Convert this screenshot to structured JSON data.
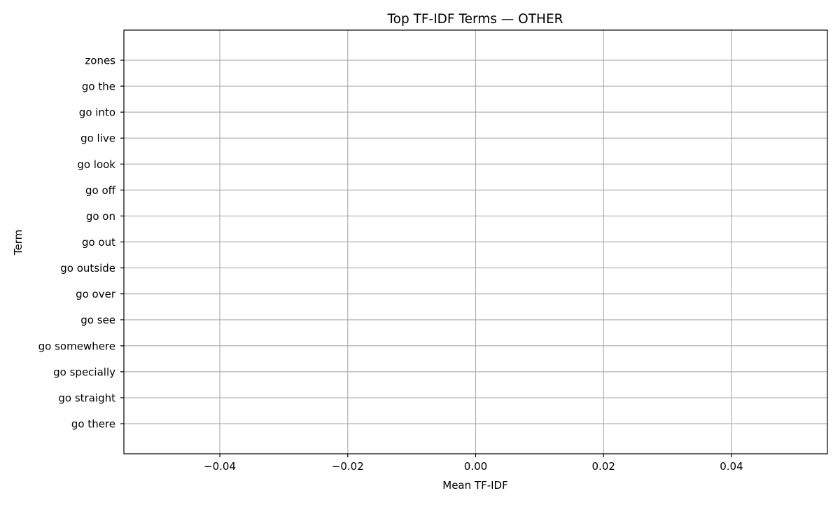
{
  "chart_data": {
    "type": "bar",
    "orientation": "horizontal",
    "title": "Top TF-IDF Terms — OTHER",
    "xlabel": "Mean TF-IDF",
    "ylabel": "Term",
    "categories": [
      "zones",
      "go the",
      "go into",
      "go live",
      "go look",
      "go off",
      "go on",
      "go out",
      "go outside",
      "go over",
      "go see",
      "go somewhere",
      "go specially",
      "go straight",
      "go there"
    ],
    "values": [
      0,
      0,
      0,
      0,
      0,
      0,
      0,
      0,
      0,
      0,
      0,
      0,
      0,
      0,
      0
    ],
    "xlim": [
      -0.055,
      0.055
    ],
    "xticks": [
      -0.04,
      -0.02,
      0.0,
      0.02,
      0.04
    ],
    "xtick_labels": [
      "−0.04",
      "−0.02",
      "0.00",
      "0.02",
      "0.04"
    ],
    "grid": true,
    "colors": {
      "grid": "#b0b0b0",
      "axis": "#000000",
      "bar": "#1f77b4"
    }
  }
}
